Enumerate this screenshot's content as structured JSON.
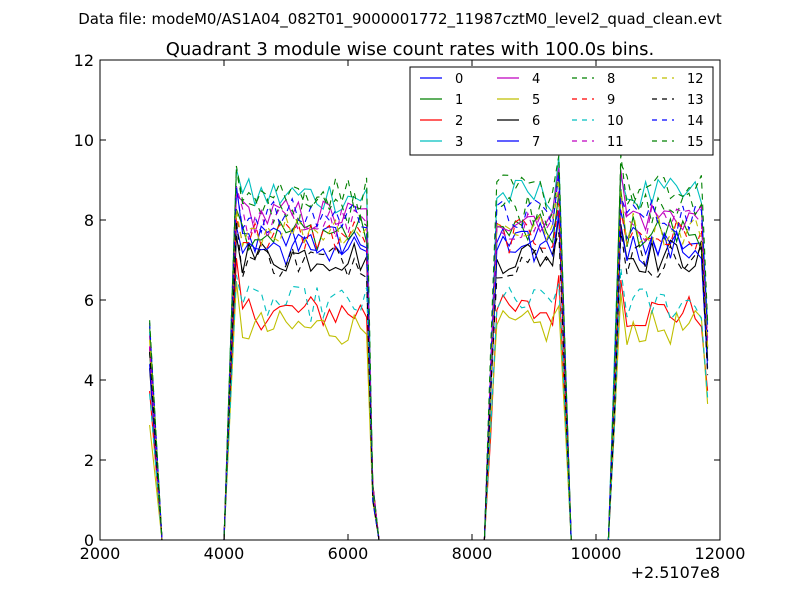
{
  "chart_data": {
    "type": "line",
    "suptitle": "Data file: modeM0/AS1A04_082T01_9000001772_11987cztM0_level2_quad_clean.evt",
    "title": "Quadrant 3 module wise count rates with 100.0s bins.",
    "xlabel": "",
    "ylabel": "",
    "x_offset_label": "+2.5107e8",
    "xlim": [
      2000,
      12000
    ],
    "ylim": [
      0,
      12
    ],
    "xticks": [
      2000,
      4000,
      6000,
      8000,
      10000,
      12000
    ],
    "yticks": [
      0,
      2,
      4,
      6,
      8,
      10,
      12
    ],
    "grid": false,
    "legend": {
      "placement": "top-right",
      "columns": 4
    },
    "x": [
      2800,
      3000,
      4000,
      4200,
      4300,
      4400,
      4500,
      4600,
      4700,
      4800,
      4900,
      5000,
      5100,
      5200,
      5300,
      5400,
      5500,
      5600,
      5700,
      5800,
      5900,
      6000,
      6100,
      6200,
      6300,
      6400,
      6500,
      8200,
      8300,
      8400,
      8500,
      8600,
      8700,
      8800,
      8900,
      9000,
      9100,
      9200,
      9300,
      9400,
      9600,
      10200,
      10300,
      10400,
      10500,
      10600,
      10700,
      10800,
      10900,
      11000,
      11100,
      11200,
      11300,
      11400,
      11500,
      11600,
      11700,
      11800
    ],
    "series": [
      {
        "name": "0",
        "color": "#0000ff",
        "dash": "solid",
        "level": 7.5
      },
      {
        "name": "1",
        "color": "#008000",
        "dash": "solid",
        "level": 7.7
      },
      {
        "name": "2",
        "color": "#ff0000",
        "dash": "solid",
        "level": 5.7
      },
      {
        "name": "3",
        "color": "#00bfbf",
        "dash": "solid",
        "level": 8.6
      },
      {
        "name": "4",
        "color": "#bf00bf",
        "dash": "solid",
        "level": 8.1
      },
      {
        "name": "5",
        "color": "#bfbf00",
        "dash": "solid",
        "level": 5.3
      },
      {
        "name": "6",
        "color": "#000000",
        "dash": "solid",
        "level": 7.1
      },
      {
        "name": "7",
        "color": "#0000ff",
        "dash": "solid",
        "level": 7.3
      },
      {
        "name": "8",
        "color": "#008000",
        "dash": "dashed",
        "level": 8.3
      },
      {
        "name": "9",
        "color": "#ff0000",
        "dash": "dashed",
        "level": 7.6
      },
      {
        "name": "10",
        "color": "#00bfbf",
        "dash": "dashed",
        "level": 5.9
      },
      {
        "name": "11",
        "color": "#bf00bf",
        "dash": "dashed",
        "level": 7.9
      },
      {
        "name": "12",
        "color": "#bfbf00",
        "dash": "dashed",
        "level": 7.8
      },
      {
        "name": "13",
        "color": "#000000",
        "dash": "dashed",
        "level": 7.0
      },
      {
        "name": "14",
        "color": "#0000ff",
        "dash": "dashed",
        "level": 8.1
      },
      {
        "name": "15",
        "color": "#008000",
        "dash": "dashed",
        "level": 8.7
      }
    ]
  }
}
